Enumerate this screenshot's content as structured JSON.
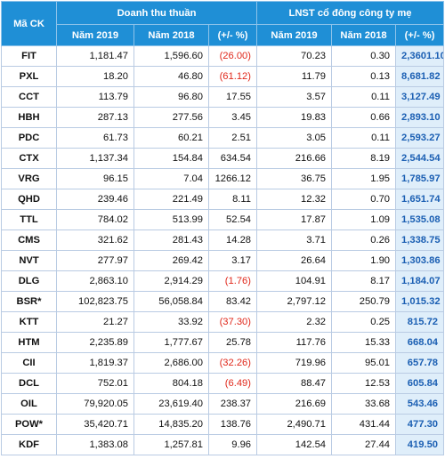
{
  "headers": {
    "code": "Mã CK",
    "group1": "Doanh thu thuần",
    "group2": "LNST cổ đông công ty mẹ",
    "sub": [
      "Năm 2019",
      "Năm 2018",
      "(+/- %)",
      "Năm 2019",
      "Năm 2018",
      "(+/- %)"
    ]
  },
  "rows": [
    {
      "code": "FIT",
      "rev2019": "1,181.47",
      "rev2018": "1,596.60",
      "rev_pct": "(26.00)",
      "rev_neg": true,
      "np2019": "70.23",
      "np2018": "0.30",
      "np_pct": "2,3601.10"
    },
    {
      "code": "PXL",
      "rev2019": "18.20",
      "rev2018": "46.80",
      "rev_pct": "(61.12)",
      "rev_neg": true,
      "np2019": "11.79",
      "np2018": "0.13",
      "np_pct": "8,681.82"
    },
    {
      "code": "CCT",
      "rev2019": "113.79",
      "rev2018": "96.80",
      "rev_pct": "17.55",
      "rev_neg": false,
      "np2019": "3.57",
      "np2018": "0.11",
      "np_pct": "3,127.49"
    },
    {
      "code": "HBH",
      "rev2019": "287.13",
      "rev2018": "277.56",
      "rev_pct": "3.45",
      "rev_neg": false,
      "np2019": "19.83",
      "np2018": "0.66",
      "np_pct": "2,893.10"
    },
    {
      "code": "PDC",
      "rev2019": "61.73",
      "rev2018": "60.21",
      "rev_pct": "2.51",
      "rev_neg": false,
      "np2019": "3.05",
      "np2018": "0.11",
      "np_pct": "2,593.27"
    },
    {
      "code": "CTX",
      "rev2019": "1,137.34",
      "rev2018": "154.84",
      "rev_pct": "634.54",
      "rev_neg": false,
      "np2019": "216.66",
      "np2018": "8.19",
      "np_pct": "2,544.54"
    },
    {
      "code": "VRG",
      "rev2019": "96.15",
      "rev2018": "7.04",
      "rev_pct": "1266.12",
      "rev_neg": false,
      "np2019": "36.75",
      "np2018": "1.95",
      "np_pct": "1,785.97"
    },
    {
      "code": "QHD",
      "rev2019": "239.46",
      "rev2018": "221.49",
      "rev_pct": "8.11",
      "rev_neg": false,
      "np2019": "12.32",
      "np2018": "0.70",
      "np_pct": "1,651.74"
    },
    {
      "code": "TTL",
      "rev2019": "784.02",
      "rev2018": "513.99",
      "rev_pct": "52.54",
      "rev_neg": false,
      "np2019": "17.87",
      "np2018": "1.09",
      "np_pct": "1,535.08"
    },
    {
      "code": "CMS",
      "rev2019": "321.62",
      "rev2018": "281.43",
      "rev_pct": "14.28",
      "rev_neg": false,
      "np2019": "3.71",
      "np2018": "0.26",
      "np_pct": "1,338.75"
    },
    {
      "code": "NVT",
      "rev2019": "277.97",
      "rev2018": "269.42",
      "rev_pct": "3.17",
      "rev_neg": false,
      "np2019": "26.64",
      "np2018": "1.90",
      "np_pct": "1,303.86"
    },
    {
      "code": "DLG",
      "rev2019": "2,863.10",
      "rev2018": "2,914.29",
      "rev_pct": "(1.76)",
      "rev_neg": true,
      "np2019": "104.91",
      "np2018": "8.17",
      "np_pct": "1,184.07"
    },
    {
      "code": "BSR*",
      "rev2019": "102,823.75",
      "rev2018": "56,058.84",
      "rev_pct": "83.42",
      "rev_neg": false,
      "np2019": "2,797.12",
      "np2018": "250.79",
      "np_pct": "1,015.32"
    },
    {
      "code": "KTT",
      "rev2019": "21.27",
      "rev2018": "33.92",
      "rev_pct": "(37.30)",
      "rev_neg": true,
      "np2019": "2.32",
      "np2018": "0.25",
      "np_pct": "815.72"
    },
    {
      "code": "HTM",
      "rev2019": "2,235.89",
      "rev2018": "1,777.67",
      "rev_pct": "25.78",
      "rev_neg": false,
      "np2019": "117.76",
      "np2018": "15.33",
      "np_pct": "668.04"
    },
    {
      "code": "CII",
      "rev2019": "1,819.37",
      "rev2018": "2,686.00",
      "rev_pct": "(32.26)",
      "rev_neg": true,
      "np2019": "719.96",
      "np2018": "95.01",
      "np_pct": "657.78"
    },
    {
      "code": "DCL",
      "rev2019": "752.01",
      "rev2018": "804.18",
      "rev_pct": "(6.49)",
      "rev_neg": true,
      "np2019": "88.47",
      "np2018": "12.53",
      "np_pct": "605.84"
    },
    {
      "code": "OIL",
      "rev2019": "79,920.05",
      "rev2018": "23,619.40",
      "rev_pct": "238.37",
      "rev_neg": false,
      "np2019": "216.69",
      "np2018": "33.68",
      "np_pct": "543.46"
    },
    {
      "code": "POW*",
      "rev2019": "35,420.71",
      "rev2018": "14,835.20",
      "rev_pct": "138.76",
      "rev_neg": false,
      "np2019": "2,490.71",
      "np2018": "431.44",
      "np_pct": "477.30"
    },
    {
      "code": "KDF",
      "rev2019": "1,383.08",
      "rev2018": "1,257.81",
      "rev_pct": "9.96",
      "rev_neg": false,
      "np2019": "142.54",
      "np2018": "27.44",
      "np_pct": "419.50"
    }
  ]
}
